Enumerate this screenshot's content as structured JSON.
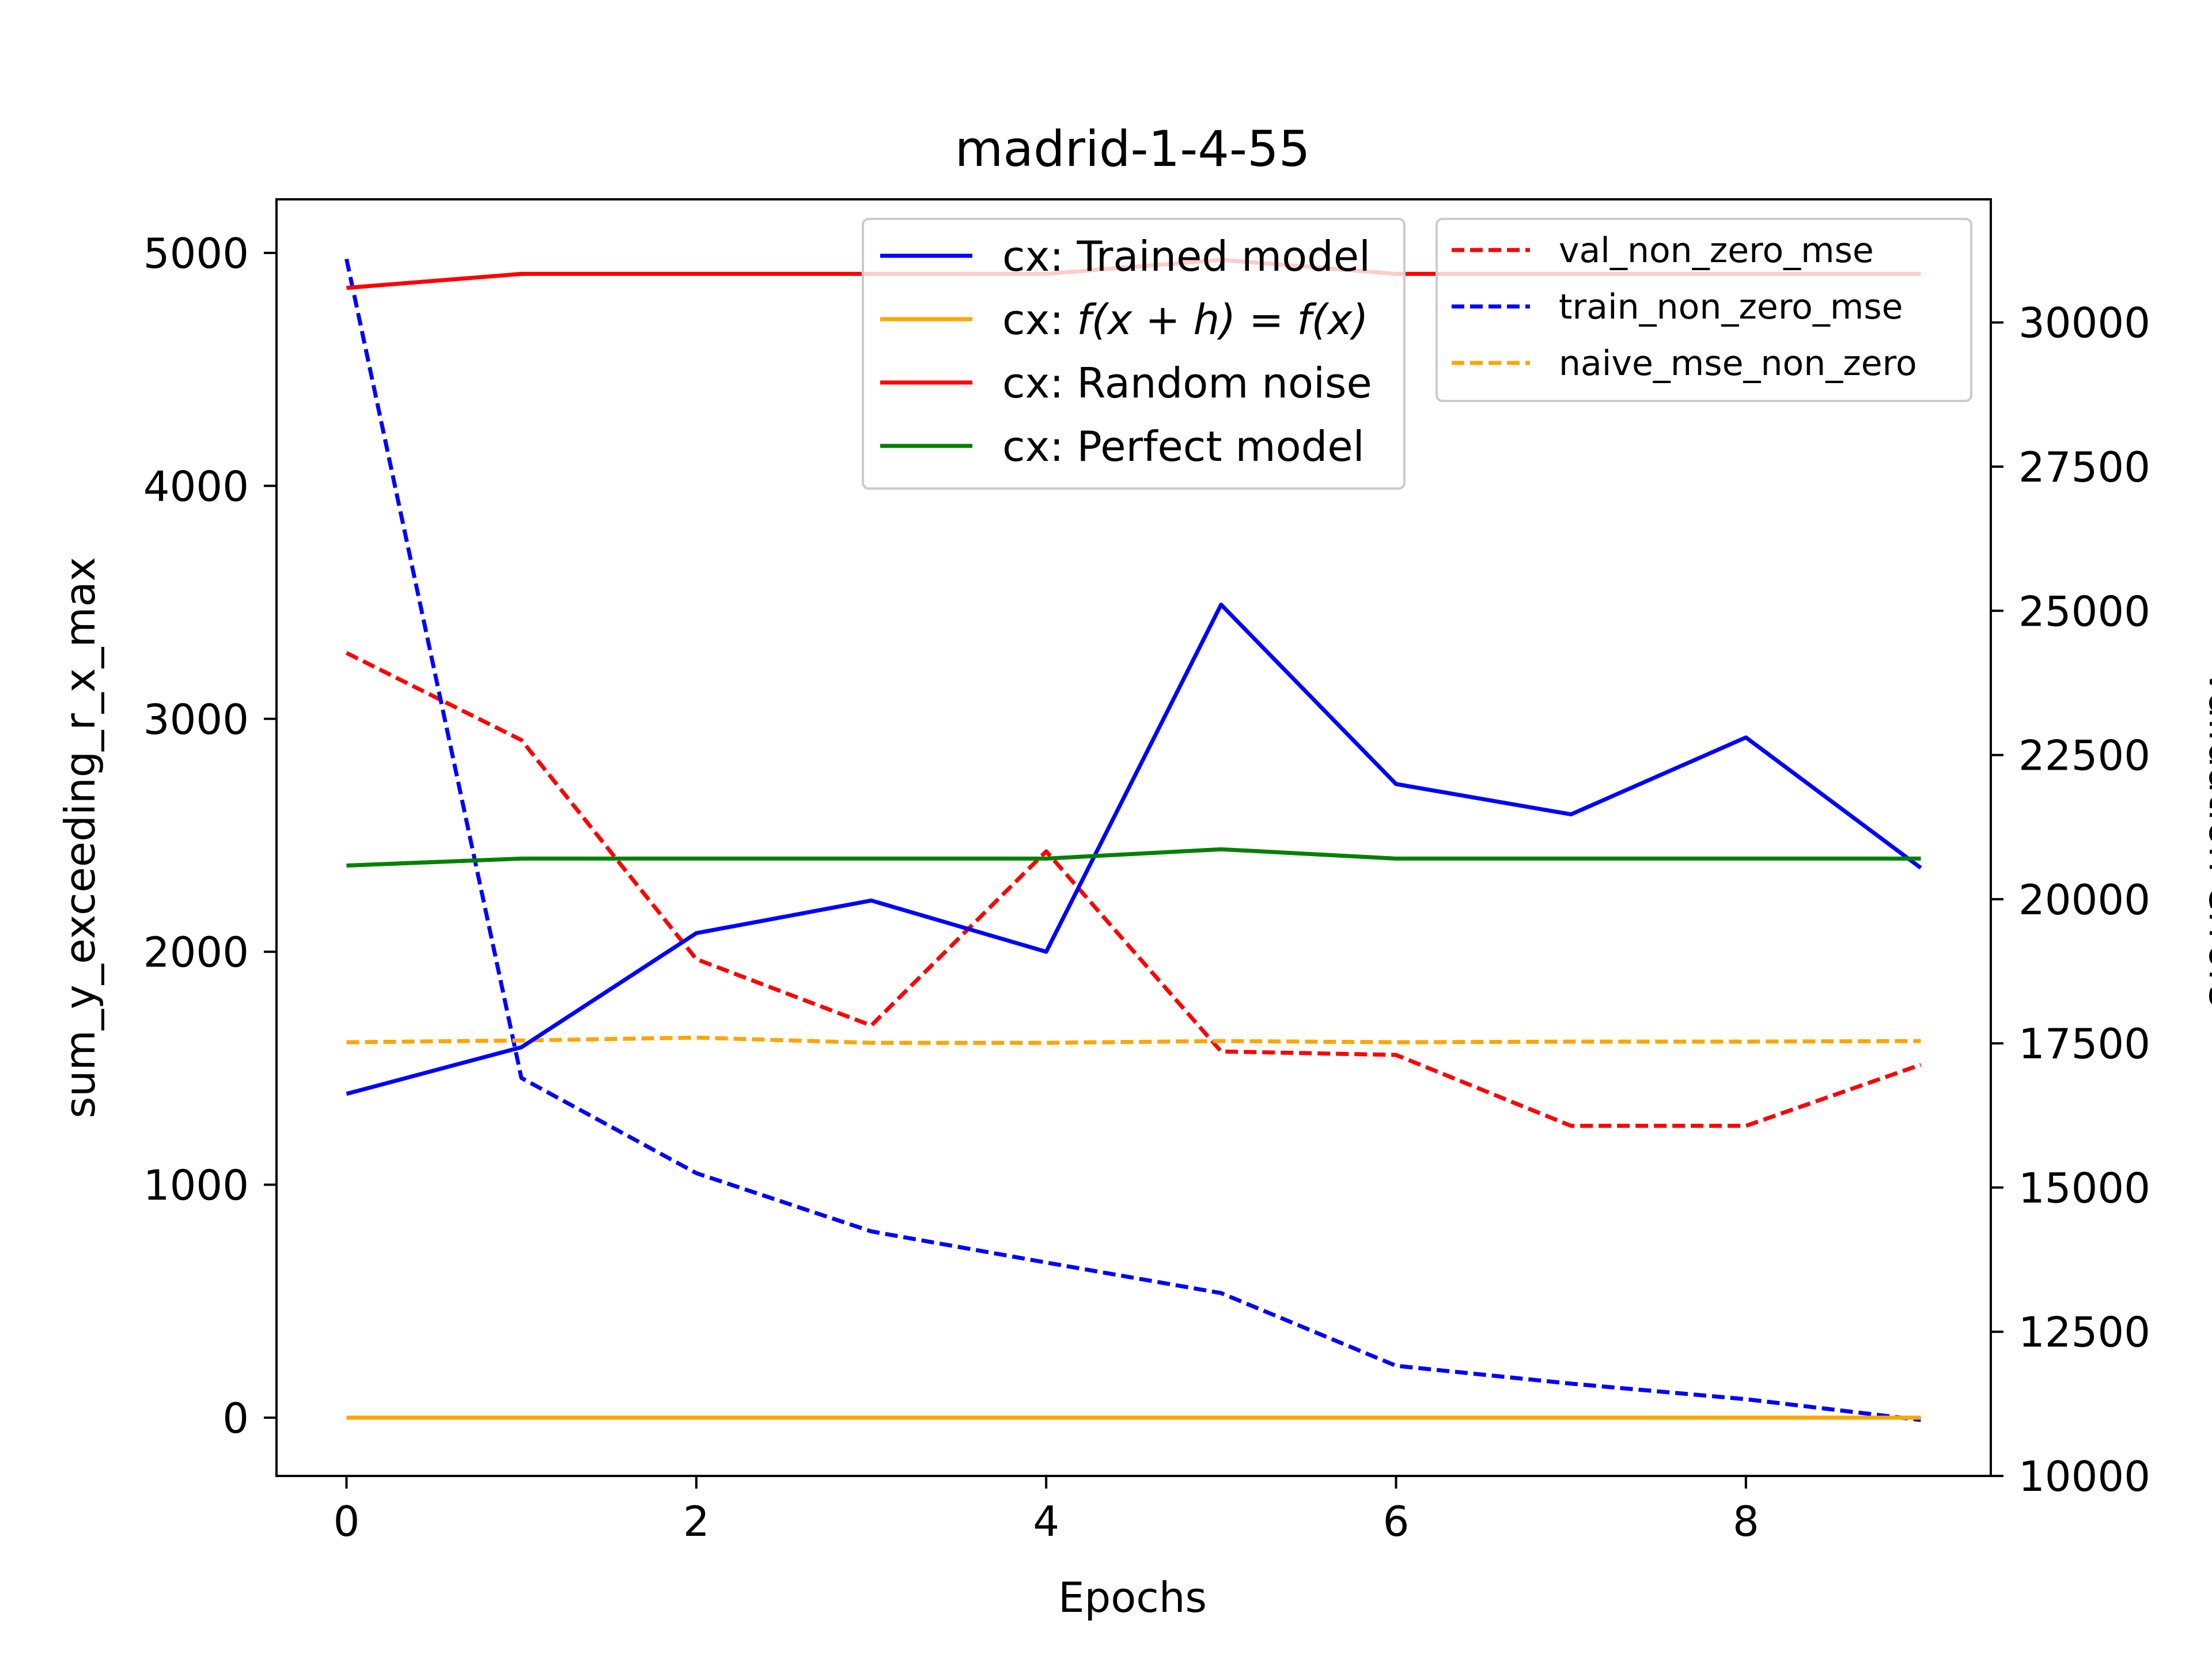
{
  "chart_data": {
    "type": "line",
    "title": "madrid-1-4-55",
    "xlabel": "Epochs",
    "ylabel_left": "sum_y_exceeding_r_x_max",
    "ylabel_right": "Validation errors",
    "x": [
      0,
      1,
      2,
      3,
      4,
      5,
      6,
      7,
      8,
      9
    ],
    "xlim": [
      -0.4,
      9.4
    ],
    "ylim_left": [
      -250,
      5230
    ],
    "ylim_right": [
      10000,
      32135
    ],
    "xticks": [
      "0",
      "2",
      "4",
      "6",
      "8"
    ],
    "yticks_left": [
      "0",
      "1000",
      "2000",
      "3000",
      "4000",
      "5000"
    ],
    "yticks_right": [
      "10000",
      "12500",
      "15000",
      "17500",
      "20000",
      "22500",
      "25000",
      "27500",
      "30000"
    ],
    "grid": false,
    "legend_left_position": "top-center",
    "legend_right_position": "top-right",
    "series_left": [
      {
        "name": "cx: Trained model",
        "label_plain": "cx: Trained model",
        "color": "#0000ff",
        "style": "solid",
        "values": [
          1390,
          1590,
          2080,
          2220,
          2000,
          3490,
          2720,
          2590,
          2920,
          2360
        ]
      },
      {
        "name": "cx: f(x + h) = f(x)",
        "label_prefix": "cx: ",
        "label_math": "f(x + h) = f(x)",
        "color": "#ffa500",
        "style": "solid",
        "values": [
          0,
          0,
          0,
          0,
          0,
          0,
          0,
          0,
          0,
          0
        ]
      },
      {
        "name": "cx: Random noise",
        "label_plain": "cx: Random noise",
        "color": "#ff0000",
        "style": "solid",
        "values": [
          4850,
          4910,
          4910,
          4910,
          4910,
          4970,
          4910,
          4910,
          4910,
          4910
        ]
      },
      {
        "name": "cx: Perfect model",
        "label_plain": "cx: Perfect model",
        "color": "#008000",
        "style": "solid",
        "values": [
          2370,
          2400,
          2400,
          2400,
          2400,
          2440,
          2400,
          2400,
          2400,
          2400
        ]
      }
    ],
    "series_right": [
      {
        "name": "val_non_zero_mse",
        "color": "#ff0000",
        "style": "dashed",
        "values": [
          24270,
          22760,
          18960,
          17810,
          20830,
          17360,
          17300,
          16070,
          16070,
          17130
        ]
      },
      {
        "name": "train_non_zero_mse",
        "color": "#0000ff",
        "style": "dashed",
        "values": [
          31100,
          16900,
          15250,
          14240,
          13700,
          13170,
          11910,
          11600,
          11330,
          10970
        ]
      },
      {
        "name": "naive_mse_non_zero",
        "color": "#ffa500",
        "style": "dashed",
        "values": [
          17520,
          17550,
          17600,
          17510,
          17510,
          17540,
          17520,
          17530,
          17530,
          17540
        ]
      }
    ]
  }
}
